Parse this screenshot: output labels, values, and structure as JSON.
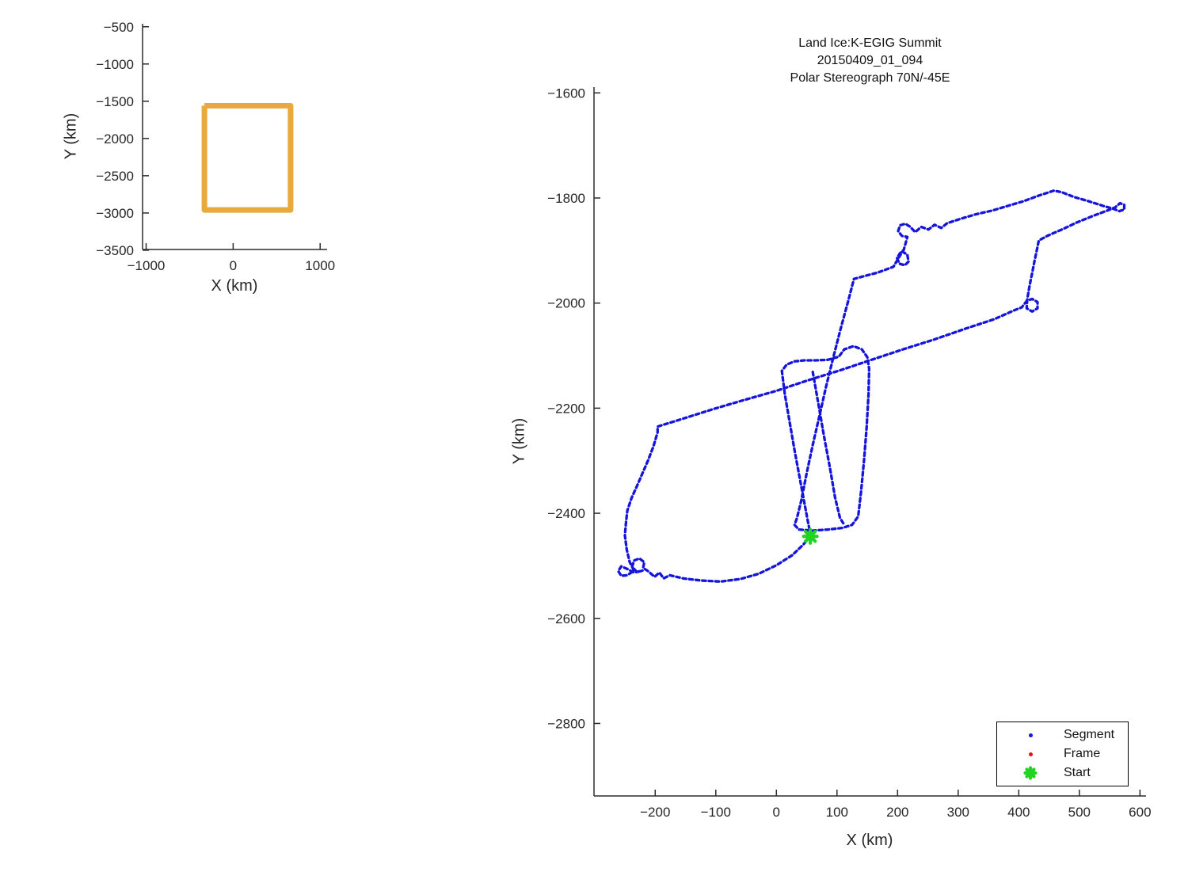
{
  "figure": {
    "background": "#ffffff",
    "axis_color": "#2b2b2b",
    "tick_label_color": "#262626"
  },
  "chart_data": [
    {
      "name": "overview-map",
      "type": "line",
      "title": "",
      "xlabel": "X (km)",
      "ylabel": "Y (km)",
      "xlim": [
        -1041,
        1080
      ],
      "ylim": [
        -460,
        -3490
      ],
      "xticks": [
        -1000,
        0,
        1000
      ],
      "yticks": [
        -500,
        -1000,
        -1500,
        -2000,
        -2500,
        -3000,
        -3500
      ],
      "grid": false,
      "series": [
        {
          "name": "coverage-bounds-outline",
          "kind": "outline",
          "color": "#E9A93C",
          "stroke_width": 7,
          "points": [
            [
              -330,
              -1560
            ],
            [
              660,
              -1560
            ],
            [
              660,
              -2960
            ],
            [
              -330,
              -2960
            ],
            [
              -330,
              -1560
            ]
          ]
        }
      ]
    },
    {
      "name": "flight-track",
      "type": "line",
      "title_lines": [
        "Land Ice:K-EGIG Summit",
        "20150409_01_094",
        "Polar Stereograph 70N/-45E"
      ],
      "xlabel": "X (km)",
      "ylabel": "Y (km)",
      "xlim": [
        -301,
        610
      ],
      "ylim": [
        -1589,
        -2938
      ],
      "xticks": [
        -200,
        -100,
        0,
        100,
        200,
        300,
        400,
        500,
        600
      ],
      "yticks": [
        -1600,
        -1800,
        -2000,
        -2200,
        -2400,
        -2600,
        -2800
      ],
      "grid": false,
      "series": [
        {
          "name": "segment-track",
          "kind": "dashed-path",
          "color": "#1414DB",
          "stroke_width": 3.3,
          "dash": [
            4.5,
            3.8
          ],
          "subpaths": [
            [
              [
                56,
                -2444
              ],
              [
                44,
                -2460
              ],
              [
                26,
                -2480
              ],
              [
                0,
                -2499
              ],
              [
                -29,
                -2515
              ],
              [
                -59,
                -2525
              ],
              [
                -92,
                -2530
              ],
              [
                -124,
                -2528
              ],
              [
                -154,
                -2524
              ],
              [
                -176,
                -2518
              ],
              [
                -186,
                -2524
              ],
              [
                -193,
                -2513
              ],
              [
                -201,
                -2521
              ],
              [
                -212,
                -2510
              ],
              [
                -220,
                -2504
              ],
              [
                -218,
                -2493
              ],
              [
                -226,
                -2486
              ],
              [
                -235,
                -2490
              ],
              [
                -238,
                -2502
              ],
              [
                -230,
                -2512
              ],
              [
                -221,
                -2509
              ],
              [
                -235,
                -2513
              ],
              [
                -246,
                -2506
              ],
              [
                -256,
                -2501
              ],
              [
                -261,
                -2510
              ],
              [
                -256,
                -2519
              ],
              [
                -246,
                -2518
              ],
              [
                -235,
                -2509
              ],
              [
                -242,
                -2493
              ],
              [
                -247,
                -2469
              ],
              [
                -250,
                -2442
              ],
              [
                -248,
                -2416
              ],
              [
                -246,
                -2395
              ],
              [
                -239,
                -2371
              ],
              [
                -230,
                -2348
              ],
              [
                -221,
                -2324
              ],
              [
                -212,
                -2300
              ],
              [
                -203,
                -2273
              ],
              [
                -196,
                -2246
              ],
              [
                -196,
                -2235
              ],
              [
                -157,
                -2221
              ],
              [
                -105,
                -2202
              ],
              [
                -52,
                -2184
              ],
              [
                0,
                -2167
              ],
              [
                52,
                -2147
              ],
              [
                105,
                -2128
              ],
              [
                157,
                -2108
              ],
              [
                209,
                -2088
              ],
              [
                261,
                -2069
              ],
              [
                314,
                -2048
              ],
              [
                359,
                -2031
              ],
              [
                392,
                -2014
              ],
              [
                405,
                -2008
              ],
              [
                413,
                -1996
              ],
              [
                422,
                -1992
              ],
              [
                431,
                -1998
              ],
              [
                431,
                -2010
              ],
              [
                422,
                -2016
              ],
              [
                413,
                -2010
              ],
              [
                414,
                -1993
              ],
              [
                418,
                -1966
              ],
              [
                422,
                -1943
              ],
              [
                426,
                -1920
              ],
              [
                430,
                -1898
              ],
              [
                433,
                -1881
              ],
              [
                447,
                -1872
              ],
              [
                471,
                -1860
              ],
              [
                497,
                -1846
              ],
              [
                523,
                -1834
              ],
              [
                546,
                -1824
              ],
              [
                559,
                -1818
              ],
              [
                567,
                -1810
              ],
              [
                574,
                -1813
              ],
              [
                574,
                -1822
              ],
              [
                566,
                -1825
              ],
              [
                557,
                -1821
              ],
              [
                539,
                -1815
              ],
              [
                515,
                -1806
              ],
              [
                491,
                -1798
              ],
              [
                471,
                -1789
              ],
              [
                458,
                -1786
              ],
              [
                434,
                -1795
              ],
              [
                408,
                -1806
              ],
              [
                382,
                -1815
              ],
              [
                356,
                -1824
              ],
              [
                329,
                -1831
              ],
              [
                303,
                -1840
              ],
              [
                282,
                -1848
              ],
              [
                272,
                -1857
              ],
              [
                261,
                -1851
              ],
              [
                251,
                -1860
              ],
              [
                239,
                -1855
              ],
              [
                229,
                -1865
              ],
              [
                221,
                -1855
              ],
              [
                213,
                -1849
              ],
              [
                204,
                -1852
              ],
              [
                201,
                -1863
              ],
              [
                207,
                -1872
              ],
              [
                216,
                -1874
              ],
              [
                213,
                -1887
              ],
              [
                210,
                -1899
              ],
              [
                204,
                -1905
              ],
              [
                199,
                -1914
              ],
              [
                203,
                -1925
              ],
              [
                212,
                -1928
              ],
              [
                218,
                -1921
              ],
              [
                216,
                -1908
              ],
              [
                208,
                -1902
              ],
              [
                193,
                -1931
              ],
              [
                167,
                -1942
              ],
              [
                144,
                -1949
              ],
              [
                128,
                -1954
              ],
              [
                118,
                -1998
              ],
              [
                106,
                -2049
              ],
              [
                94,
                -2103
              ],
              [
                82,
                -2159
              ],
              [
                71,
                -2215
              ],
              [
                60,
                -2270
              ],
              [
                50,
                -2324
              ],
              [
                41,
                -2376
              ],
              [
                34,
                -2409
              ],
              [
                30,
                -2422
              ],
              [
                37,
                -2431
              ],
              [
                59,
                -2433
              ],
              [
                85,
                -2431
              ],
              [
                109,
                -2428
              ],
              [
                125,
                -2422
              ],
              [
                135,
                -2406
              ],
              [
                140,
                -2356
              ],
              [
                145,
                -2295
              ],
              [
                149,
                -2235
              ],
              [
                152,
                -2174
              ],
              [
                153,
                -2125
              ],
              [
                150,
                -2103
              ],
              [
                141,
                -2088
              ],
              [
                127,
                -2082
              ],
              [
                112,
                -2088
              ],
              [
                103,
                -2102
              ],
              [
                85,
                -2108
              ],
              [
                65,
                -2109
              ],
              [
                46,
                -2109
              ],
              [
                30,
                -2111
              ],
              [
                17,
                -2117
              ],
              [
                9,
                -2129
              ],
              [
                14,
                -2174
              ],
              [
                22,
                -2227
              ],
              [
                30,
                -2280
              ],
              [
                38,
                -2330
              ],
              [
                46,
                -2379
              ],
              [
                52,
                -2416
              ],
              [
                56,
                -2438
              ]
            ],
            [
              [
                60,
                -2131
              ],
              [
                69,
                -2190
              ],
              [
                78,
                -2250
              ],
              [
                88,
                -2311
              ],
              [
                97,
                -2371
              ],
              [
                105,
                -2409
              ],
              [
                112,
                -2422
              ]
            ]
          ]
        },
        {
          "name": "start-marker",
          "kind": "asterisk",
          "color": "#1FD51F",
          "x": 56,
          "y": -2444,
          "size": 17,
          "stroke_width": 4.2
        }
      ],
      "legend": {
        "position": "bottom-right",
        "entries": [
          {
            "label": "Segment",
            "marker": "dot",
            "color": "#1414DB"
          },
          {
            "label": "Frame",
            "marker": "dot",
            "color": "#E01414"
          },
          {
            "label": "Start",
            "marker": "asterisk",
            "color": "#1FD51F"
          }
        ]
      }
    }
  ]
}
